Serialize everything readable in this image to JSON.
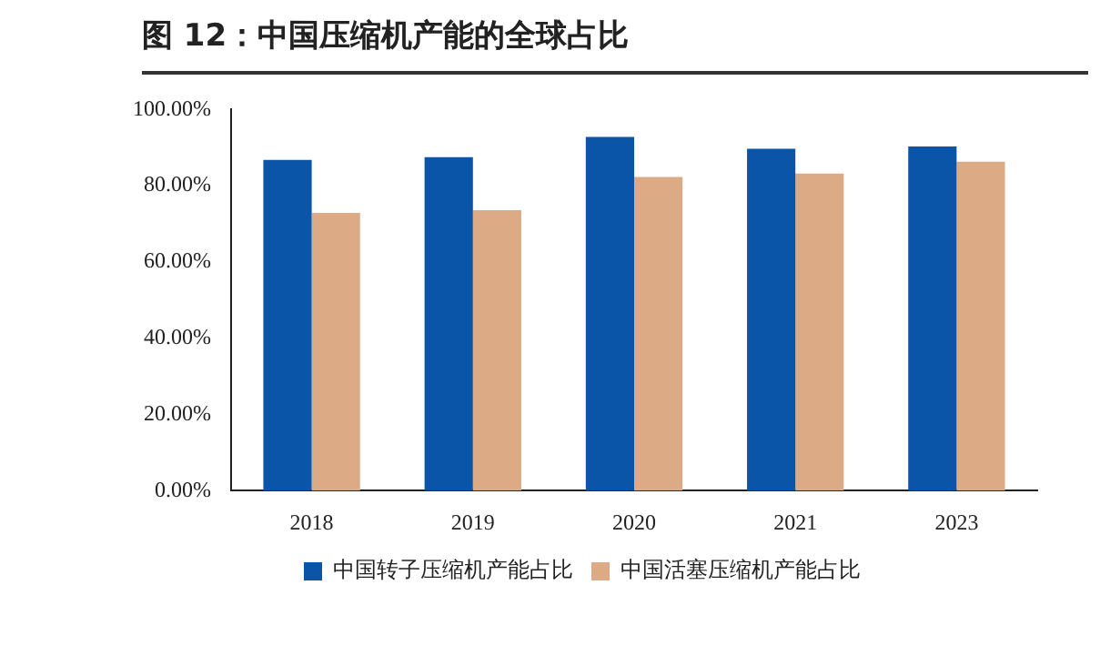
{
  "chart_data": {
    "type": "bar",
    "title": "图 12：中国压缩机产能的全球占比",
    "categories": [
      "2018",
      "2019",
      "2020",
      "2021",
      "2023"
    ],
    "series": [
      {
        "name": "中国转子压缩机产能占比",
        "color": "#0b55a8",
        "values": [
          86.8,
          87.5,
          92.8,
          89.7,
          90.3
        ]
      },
      {
        "name": "中国活塞压缩机产能占比",
        "color": "#dcaa84",
        "values": [
          72.9,
          73.6,
          82.3,
          83.2,
          86.3
        ]
      }
    ],
    "ylim": [
      0,
      100
    ],
    "yticks": [
      {
        "value": 0,
        "label": "0.00%"
      },
      {
        "value": 20,
        "label": "20.00%"
      },
      {
        "value": 40,
        "label": "40.00%"
      },
      {
        "value": 60,
        "label": "60.00%"
      },
      {
        "value": 80,
        "label": "80.00%"
      },
      {
        "value": 100,
        "label": "100.00%"
      }
    ],
    "grid": false,
    "legend": "bottom"
  }
}
